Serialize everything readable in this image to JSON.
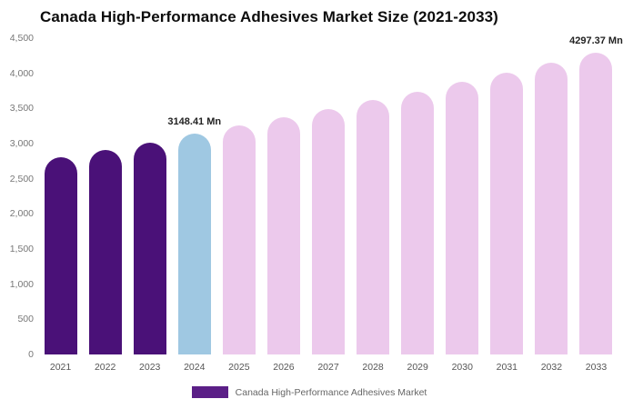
{
  "chart_data": {
    "type": "bar",
    "title": "Canada High-Performance Adhesives Market Size (2021-2033)",
    "categories": [
      "2021",
      "2022",
      "2023",
      "2024",
      "2025",
      "2026",
      "2027",
      "2028",
      "2029",
      "2030",
      "2031",
      "2032",
      "2033"
    ],
    "values": [
      2800,
      2905,
      3010,
      3148.41,
      3259,
      3374,
      3492,
      3615,
      3742,
      3874,
      4010,
      4151,
      4297.37
    ],
    "ylim": [
      0,
      4500
    ],
    "y_ticks": [
      0,
      500,
      1000,
      1500,
      2000,
      2500,
      3000,
      3500,
      4000,
      4500
    ],
    "y_tick_labels": [
      "0",
      "500",
      "1,000",
      "1,500",
      "2,000",
      "2,500",
      "3,000",
      "3,500",
      "4,000",
      "4,500"
    ],
    "grid": false,
    "legend_position": "bottom",
    "xlabel": "",
    "ylabel": "",
    "annotations": [
      {
        "category": "2024",
        "text": "3148.41 Mn"
      },
      {
        "category": "2033",
        "text": "4297.37 Mn"
      }
    ],
    "colors": {
      "historical": "#4a1178",
      "current": "#9fc8e2",
      "forecast": "#ecc9ec"
    },
    "bar_color_keys": [
      "historical",
      "historical",
      "historical",
      "current",
      "forecast",
      "forecast",
      "forecast",
      "forecast",
      "forecast",
      "forecast",
      "forecast",
      "forecast",
      "forecast"
    ]
  },
  "legend": {
    "label": "Canada High-Performance Adhesives Market",
    "swatch_color": "#5b1f87"
  }
}
